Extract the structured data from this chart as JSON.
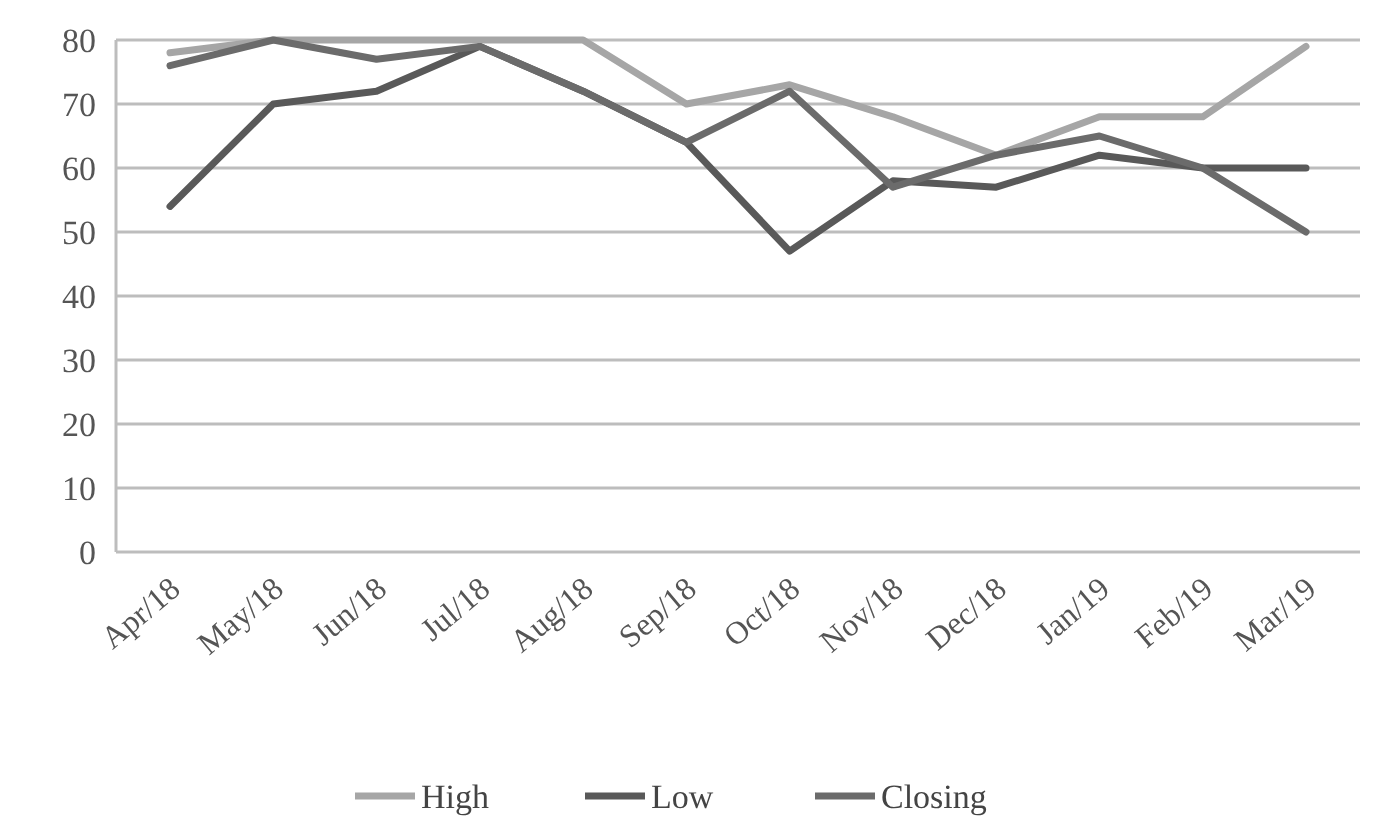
{
  "chart_data": {
    "type": "line",
    "categories": [
      "Apr/18",
      "May/18",
      "Jun/18",
      "Jul/18",
      "Aug/18",
      "Sep/18",
      "Oct/18",
      "Nov/18",
      "Dec/18",
      "Jan/19",
      "Feb/19",
      "Mar/19"
    ],
    "series": [
      {
        "name": "High",
        "color": "#a6a6a6",
        "values": [
          78,
          80,
          80,
          80,
          80,
          70,
          73,
          68,
          62,
          68,
          68,
          79
        ]
      },
      {
        "name": "Low",
        "color": "#595959",
        "values": [
          54,
          70,
          72,
          79,
          72,
          64,
          47,
          58,
          57,
          62,
          60,
          60
        ]
      },
      {
        "name": "Closing",
        "color": "#6b6b6b",
        "values": [
          76,
          80,
          77,
          79,
          72,
          64,
          72,
          57,
          62,
          65,
          60,
          50
        ]
      }
    ],
    "ylim": [
      0,
      80
    ],
    "yticks": [
      0,
      10,
      20,
      30,
      40,
      50,
      60,
      70,
      80
    ],
    "grid": "y",
    "legend": "bottom",
    "marker": "none",
    "line_style": "solid"
  }
}
